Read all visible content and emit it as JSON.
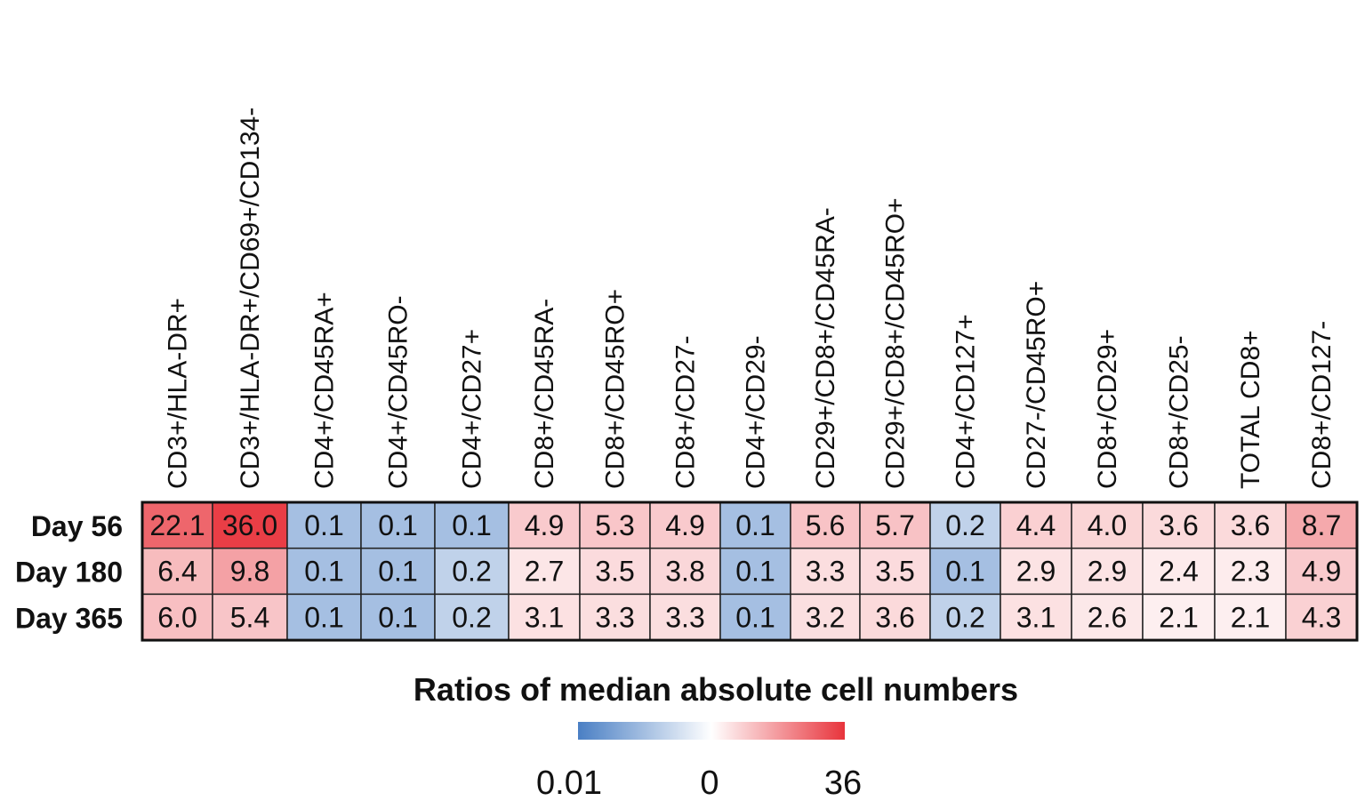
{
  "chart_data": {
    "type": "heatmap",
    "columns": [
      "CD3+/HLA-DR+",
      "CD3+/HLA-DR+/CD69+/CD134-",
      "CD4+/CD45RA+",
      "CD4+/CD45RO-",
      "CD4+/CD27+",
      "CD8+/CD45RA-",
      "CD8+/CD45RO+",
      "CD8+/CD27-",
      "CD4+/CD29-",
      "CD29+/CD8+/CD45RA-",
      "CD29+/CD8+/CD45RO+",
      "CD4+/CD127+",
      "CD27-/CD45RO+",
      "CD8+/CD29+",
      "CD8+/CD25-",
      "TOTAL CD8+",
      "CD8+/CD127-"
    ],
    "rows": [
      "Day 56",
      "Day 180",
      "Day 365"
    ],
    "values": [
      [
        "22.1",
        "36.0",
        "0.1",
        "0.1",
        "0.1",
        "4.9",
        "5.3",
        "4.9",
        "0.1",
        "5.6",
        "5.7",
        "0.2",
        "4.4",
        "4.0",
        "3.6",
        "3.6",
        "8.7"
      ],
      [
        "6.4",
        "9.8",
        "0.1",
        "0.1",
        "0.2",
        "2.7",
        "3.5",
        "3.8",
        "0.1",
        "3.3",
        "3.5",
        "0.1",
        "2.9",
        "2.9",
        "2.4",
        "2.3",
        "4.9"
      ],
      [
        "6.0",
        "5.4",
        "0.1",
        "0.1",
        "0.2",
        "3.1",
        "3.3",
        "3.3",
        "0.1",
        "3.2",
        "3.6",
        "0.2",
        "3.1",
        "2.6",
        "2.1",
        "2.1",
        "4.3"
      ]
    ],
    "legend": {
      "title": "Ratios of median absolute cell numbers",
      "ticks": [
        "0.01",
        "0",
        "36"
      ],
      "low_color": "#4a7fc4",
      "mid_color": "#ffffff",
      "high_color": "#e8343c"
    },
    "grid": true
  }
}
